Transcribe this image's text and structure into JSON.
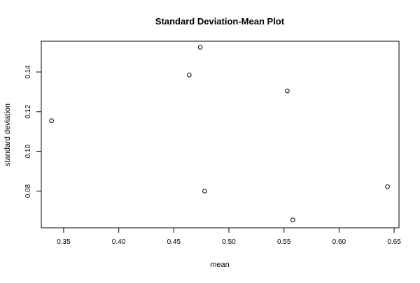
{
  "chart_data": {
    "type": "scatter",
    "title": "Standard Deviation-Mean Plot",
    "xlabel": "mean",
    "ylabel": "standard deviation",
    "xlim": [
      0.3297,
      0.6544
    ],
    "ylim": [
      0.0615,
      0.1555
    ],
    "x_ticks": [
      {
        "value": 0.35,
        "label": "0.35"
      },
      {
        "value": 0.4,
        "label": "0.40"
      },
      {
        "value": 0.45,
        "label": "0.45"
      },
      {
        "value": 0.5,
        "label": "0.50"
      },
      {
        "value": 0.55,
        "label": "0.55"
      },
      {
        "value": 0.6,
        "label": "0.60"
      },
      {
        "value": 0.65,
        "label": "0.65"
      }
    ],
    "y_ticks": [
      {
        "value": 0.08,
        "label": "0.08"
      },
      {
        "value": 0.1,
        "label": "0.10"
      },
      {
        "value": 0.12,
        "label": "0.12"
      },
      {
        "value": 0.14,
        "label": "0.14"
      }
    ],
    "grid": false,
    "legend": "none",
    "points": [
      {
        "x": 0.339,
        "y": 0.1155
      },
      {
        "x": 0.464,
        "y": 0.1385
      },
      {
        "x": 0.474,
        "y": 0.1525
      },
      {
        "x": 0.478,
        "y": 0.08
      },
      {
        "x": 0.553,
        "y": 0.1305
      },
      {
        "x": 0.558,
        "y": 0.0655
      },
      {
        "x": 0.644,
        "y": 0.0822
      }
    ]
  }
}
